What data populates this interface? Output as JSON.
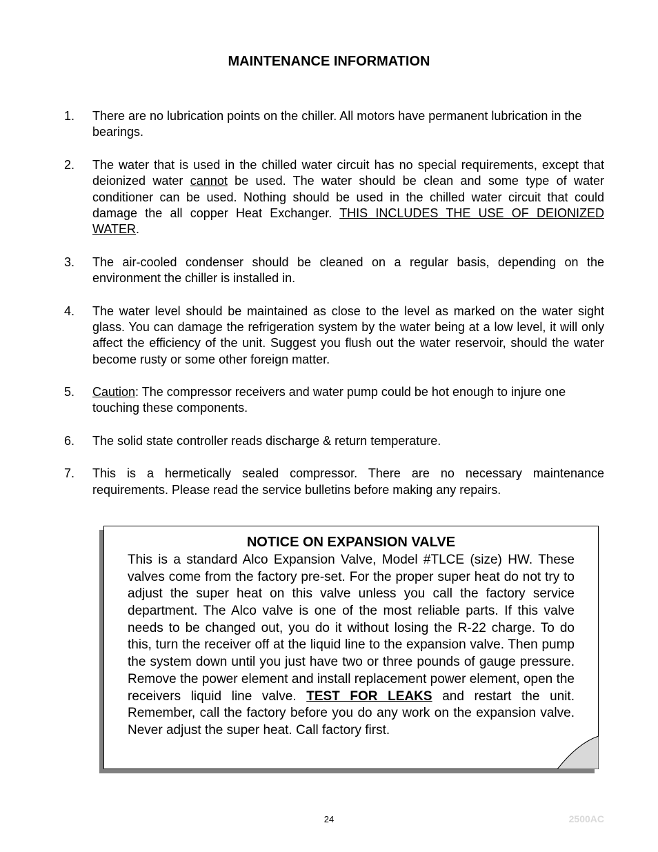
{
  "title": "MAINTENANCE INFORMATION",
  "items": [
    {
      "num": "1.",
      "justify": false,
      "html": "There are no lubrication points on the chiller. All motors have permanent lubrication in the bearings."
    },
    {
      "num": "2.",
      "justify": true,
      "html": "The water that is used in the chilled water circuit has no special requirements, except that deionized water <span class=\"underline\">cannot</span> be used. The water should be clean and some type of water conditioner can be used. Nothing should be used in the chilled water circuit that could damage the all copper Heat Exchanger. <span class=\"underline\">THIS INCLUDES THE USE OF DEIONIZED WATER</span>."
    },
    {
      "num": "3.",
      "justify": true,
      "html": "The air-cooled condenser should be cleaned on a regular basis, depending on the environment the chiller is installed in."
    },
    {
      "num": "4.",
      "justify": true,
      "html": "The water level should be maintained as close to the level as marked on the water sight glass. You can damage the refrigeration system by the water being at a low level, it will only affect the efficiency of the unit. Suggest you flush out the water reservoir, should the water become rusty or some other foreign matter."
    },
    {
      "num": "5.",
      "justify": false,
      "html": "<span class=\"underline\">Caution</span>: The compressor receivers and water pump could be hot enough to injure one touching these components."
    },
    {
      "num": "6.",
      "justify": false,
      "html": "The solid state controller reads discharge &amp; return temperature."
    },
    {
      "num": "7.",
      "justify": true,
      "html": "This is a hermetically sealed compressor. There are no necessary maintenance requirements. Please read the service bulletins before making any repairs."
    }
  ],
  "notice": {
    "title": "NOTICE ON EXPANSION VALVE",
    "body_html": "This is a standard Alco Expansion Valve, Model #TLCE (size) HW.  These valves come from the factory pre-set.  For the proper super heat do not try to adjust the super heat on this valve unless you call the factory service department.  The Alco valve is one of the most reliable parts.  If this valve needs to be changed out, you do it without losing the R-22 charge.  To do this, turn the receiver off at the liquid line to the expansion valve.  Then pump the system down until you just have two or three pounds of gauge pressure.  Remove the power element and install replacement power element, open the receivers liquid line valve.  <span class=\"bold-underline\">TEST FOR LEAKS</span> and restart the unit.  Remember, call the factory before you do any work on the expansion valve. Never adjust the super heat. Call factory first."
  },
  "footer": {
    "page_number": "24",
    "code": "2500AC"
  },
  "colors": {
    "shadow": "#808080",
    "curl_fill": "#d9d9d9",
    "footer_code": "#d9d9d9",
    "text": "#000000",
    "background": "#ffffff"
  }
}
